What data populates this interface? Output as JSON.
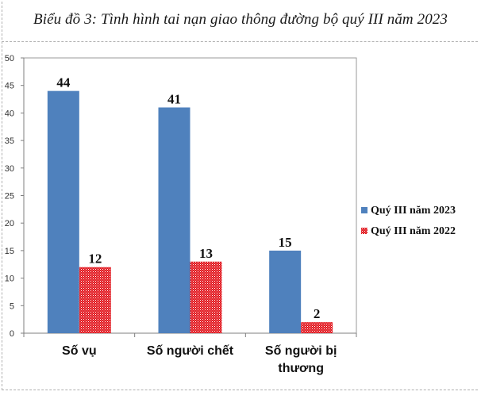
{
  "chart_data": {
    "type": "bar",
    "title": "Biểu đồ 3: Tình hình tai nạn giao thông đường bộ quý III năm 2023",
    "categories": [
      "Số vụ",
      "Số người chết",
      "Số người bị thương"
    ],
    "series": [
      {
        "name": "Quý III năm 2023",
        "values": [
          44,
          41,
          15
        ],
        "color": "#4f81bd",
        "pattern": "solid"
      },
      {
        "name": "Quý III năm 2022",
        "values": [
          12,
          13,
          2
        ],
        "color": "#e0161e",
        "pattern": "dotted"
      }
    ],
    "ylim": [
      0,
      50
    ],
    "yticks": [
      0,
      5,
      10,
      15,
      20,
      25,
      30,
      35,
      40,
      45,
      50
    ],
    "grid": false,
    "legend_position": "right"
  }
}
